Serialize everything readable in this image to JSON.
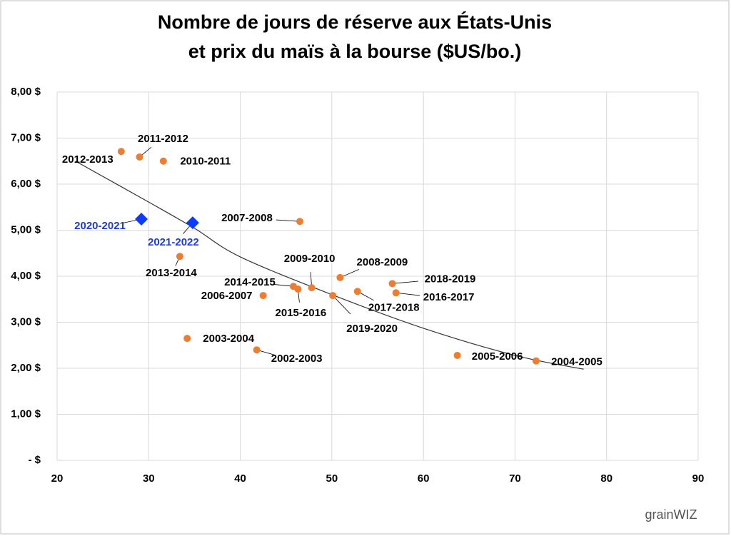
{
  "chart_data": {
    "type": "scatter",
    "title": [
      "Nombre de jours de réserve aux États-Unis",
      "et prix du maïs à la bourse ($US/bo.)"
    ],
    "xlim": [
      20,
      90
    ],
    "xticks": [
      20,
      30,
      40,
      50,
      60,
      70,
      80,
      90
    ],
    "ylim": [
      0,
      8
    ],
    "yticks": [
      {
        "value": 0,
        "label": "-   $"
      },
      {
        "value": 1,
        "label": "1,00 $"
      },
      {
        "value": 2,
        "label": "2,00 $"
      },
      {
        "value": 3,
        "label": "3,00 $"
      },
      {
        "value": 4,
        "label": "4,00 $"
      },
      {
        "value": 5,
        "label": "5,00 $"
      },
      {
        "value": 6,
        "label": "6,00 $"
      },
      {
        "value": 7,
        "label": "7,00 $"
      },
      {
        "value": 8,
        "label": "8,00 $"
      }
    ],
    "grid": true,
    "series": [
      {
        "color": "#ed7d31",
        "marker": "circle",
        "label_color": "#000000",
        "labels": [
          "2012-2013",
          "2011-2012",
          "2010-2011",
          "2007-2008",
          "2013-2014",
          "2008-2009",
          "2009-2010",
          "2014-2015",
          "2015-2016",
          "2006-2007",
          "2019-2020",
          "2017-2018",
          "2018-2019",
          "2016-2017",
          "2003-2004",
          "2002-2003",
          "2005-2006",
          "2004-2005"
        ],
        "x": [
          27.0,
          29.0,
          31.6,
          46.5,
          33.4,
          50.9,
          47.8,
          45.8,
          46.3,
          42.5,
          50.1,
          52.8,
          56.6,
          57.0,
          34.2,
          41.8,
          63.7,
          72.3
        ],
        "values": [
          6.71,
          6.59,
          6.5,
          5.19,
          4.43,
          3.97,
          3.75,
          3.78,
          3.72,
          3.58,
          3.58,
          3.67,
          3.84,
          3.64,
          2.65,
          2.4,
          2.28,
          2.16
        ]
      },
      {
        "color": "#0a3cff",
        "marker": "diamond",
        "label_color": "#1a3ce0",
        "labels": [
          "2020-2021",
          "2021-2022"
        ],
        "x": [
          29.2,
          34.8
        ],
        "values": [
          5.24,
          5.16
        ]
      }
    ],
    "trendline": {
      "color": "#333333",
      "x": [
        22,
        30,
        35,
        40,
        50,
        60,
        70,
        77.5
      ],
      "values": [
        6.5,
        5.61,
        5.04,
        4.42,
        3.6,
        2.87,
        2.28,
        1.98
      ]
    },
    "logo": "grainWIZ"
  }
}
